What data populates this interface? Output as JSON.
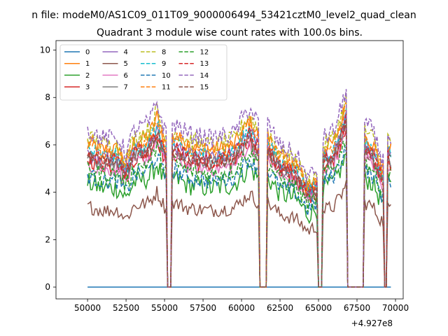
{
  "chart_data": {
    "type": "line",
    "suptitle": "n file: modeM0/AS1C09_011T09_9000006494_53421cztM0_level2_quad_clean",
    "title": "Quadrant 3 module wise count rates with 100.0s bins.",
    "xlabel": "",
    "ylabel": "",
    "x_offset_label": "+4.927e8",
    "xlim": [
      47950,
      70500
    ],
    "ylim": [
      -0.5,
      10.4
    ],
    "xticks": [
      50000,
      52500,
      55000,
      57500,
      60000,
      62500,
      65000,
      67500,
      70000
    ],
    "xtick_labels": [
      "50000",
      "52500",
      "55000",
      "57500",
      "60000",
      "62500",
      "65000",
      "67500",
      "70000"
    ],
    "yticks": [
      0,
      2,
      4,
      6,
      8,
      10
    ],
    "ytick_labels": [
      "0",
      "2",
      "4",
      "6",
      "8",
      "10"
    ],
    "x_start": 50000,
    "x_end": 69700,
    "bin": 100,
    "legend_position": "upper-left",
    "gaps": [
      [
        55200,
        55400
      ],
      [
        61200,
        61600
      ],
      [
        65000,
        65200
      ],
      [
        66900,
        67900
      ],
      [
        69300,
        69400
      ]
    ],
    "landmarks": [
      [
        50000,
        1.0
      ],
      [
        51000,
        0.95
      ],
      [
        52000,
        0.95
      ],
      [
        52500,
        0.85
      ],
      [
        53000,
        1.0
      ],
      [
        54000,
        1.05
      ],
      [
        54500,
        1.18
      ],
      [
        55000,
        1.0
      ],
      [
        55600,
        1.05
      ],
      [
        56500,
        0.98
      ],
      [
        58000,
        0.95
      ],
      [
        59500,
        0.98
      ],
      [
        60500,
        1.15
      ],
      [
        61100,
        1.05
      ],
      [
        61700,
        1.05
      ],
      [
        62500,
        0.9
      ],
      [
        63500,
        0.85
      ],
      [
        64300,
        0.7
      ],
      [
        64900,
        0.75
      ],
      [
        65300,
        0.95
      ],
      [
        66000,
        1.0
      ],
      [
        66500,
        1.15
      ],
      [
        66850,
        1.3
      ],
      [
        68000,
        1.05
      ],
      [
        68500,
        1.0
      ],
      [
        69000,
        0.85
      ],
      [
        69250,
        0.8
      ],
      [
        69500,
        1.0
      ],
      [
        69700,
        0.95
      ]
    ],
    "series": [
      {
        "name": "0",
        "color": "#1f77b4",
        "style": "solid",
        "base": 0.0,
        "noise": 0.0
      },
      {
        "name": "1",
        "color": "#ff7f0e",
        "style": "solid",
        "base": 6.1,
        "noise": 0.35
      },
      {
        "name": "2",
        "color": "#2ca02c",
        "style": "solid",
        "base": 4.4,
        "noise": 0.45
      },
      {
        "name": "3",
        "color": "#d62728",
        "style": "solid",
        "base": 5.4,
        "noise": 0.35
      },
      {
        "name": "4",
        "color": "#9467bd",
        "style": "solid",
        "base": 5.7,
        "noise": 0.35
      },
      {
        "name": "5",
        "color": "#8c564b",
        "style": "solid",
        "base": 3.4,
        "noise": 0.3
      },
      {
        "name": "6",
        "color": "#e377c2",
        "style": "solid",
        "base": 5.2,
        "noise": 0.3
      },
      {
        "name": "7",
        "color": "#7f7f7f",
        "style": "solid",
        "base": 5.5,
        "noise": 0.3
      },
      {
        "name": "8",
        "color": "#bcbd22",
        "style": "dashed",
        "base": 6.3,
        "noise": 0.4
      },
      {
        "name": "9",
        "color": "#17becf",
        "style": "dashed",
        "base": 5.8,
        "noise": 0.35
      },
      {
        "name": "10",
        "color": "#1f77b4",
        "style": "dashed",
        "base": 4.7,
        "noise": 0.35
      },
      {
        "name": "11",
        "color": "#ff7f0e",
        "style": "dashed",
        "base": 6.0,
        "noise": 0.35
      },
      {
        "name": "12",
        "color": "#2ca02c",
        "style": "dashed",
        "base": 5.0,
        "noise": 0.35
      },
      {
        "name": "13",
        "color": "#d62728",
        "style": "dashed",
        "base": 5.6,
        "noise": 0.35
      },
      {
        "name": "14",
        "color": "#9467bd",
        "style": "dashed",
        "base": 6.6,
        "noise": 0.4
      },
      {
        "name": "15",
        "color": "#8c564b",
        "style": "dashed",
        "base": 5.5,
        "noise": 0.3
      }
    ]
  }
}
